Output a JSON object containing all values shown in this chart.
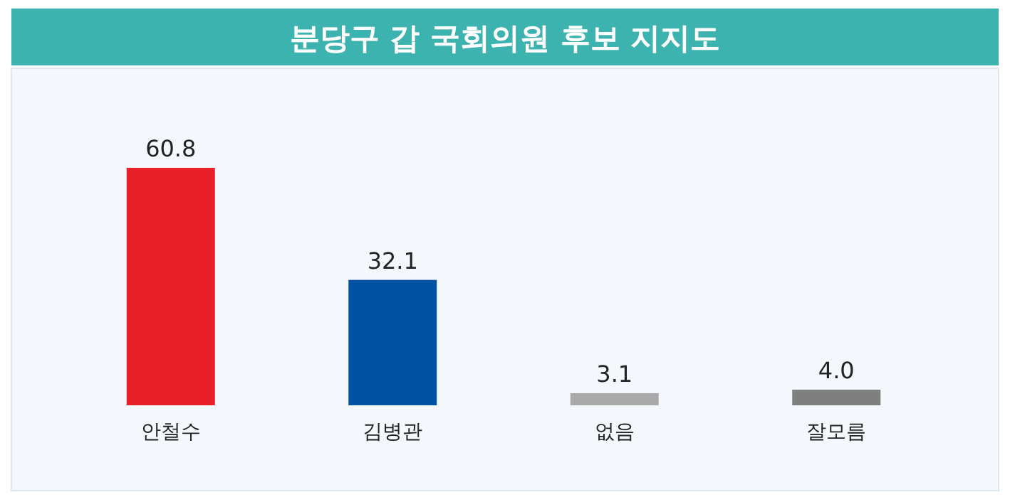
{
  "chart_data": {
    "type": "bar",
    "title": "분당구 갑 국회의원 후보 지지도",
    "categories": [
      "안철수",
      "김병관",
      "없음",
      "잘모름"
    ],
    "values": [
      60.8,
      32.1,
      3.1,
      4.0
    ],
    "value_labels": [
      "60.8",
      "32.1",
      "3.1",
      "4.0"
    ],
    "colors": [
      "#e8202a",
      "#0052a5",
      "#a9a9a9",
      "#7f7f7f"
    ]
  }
}
